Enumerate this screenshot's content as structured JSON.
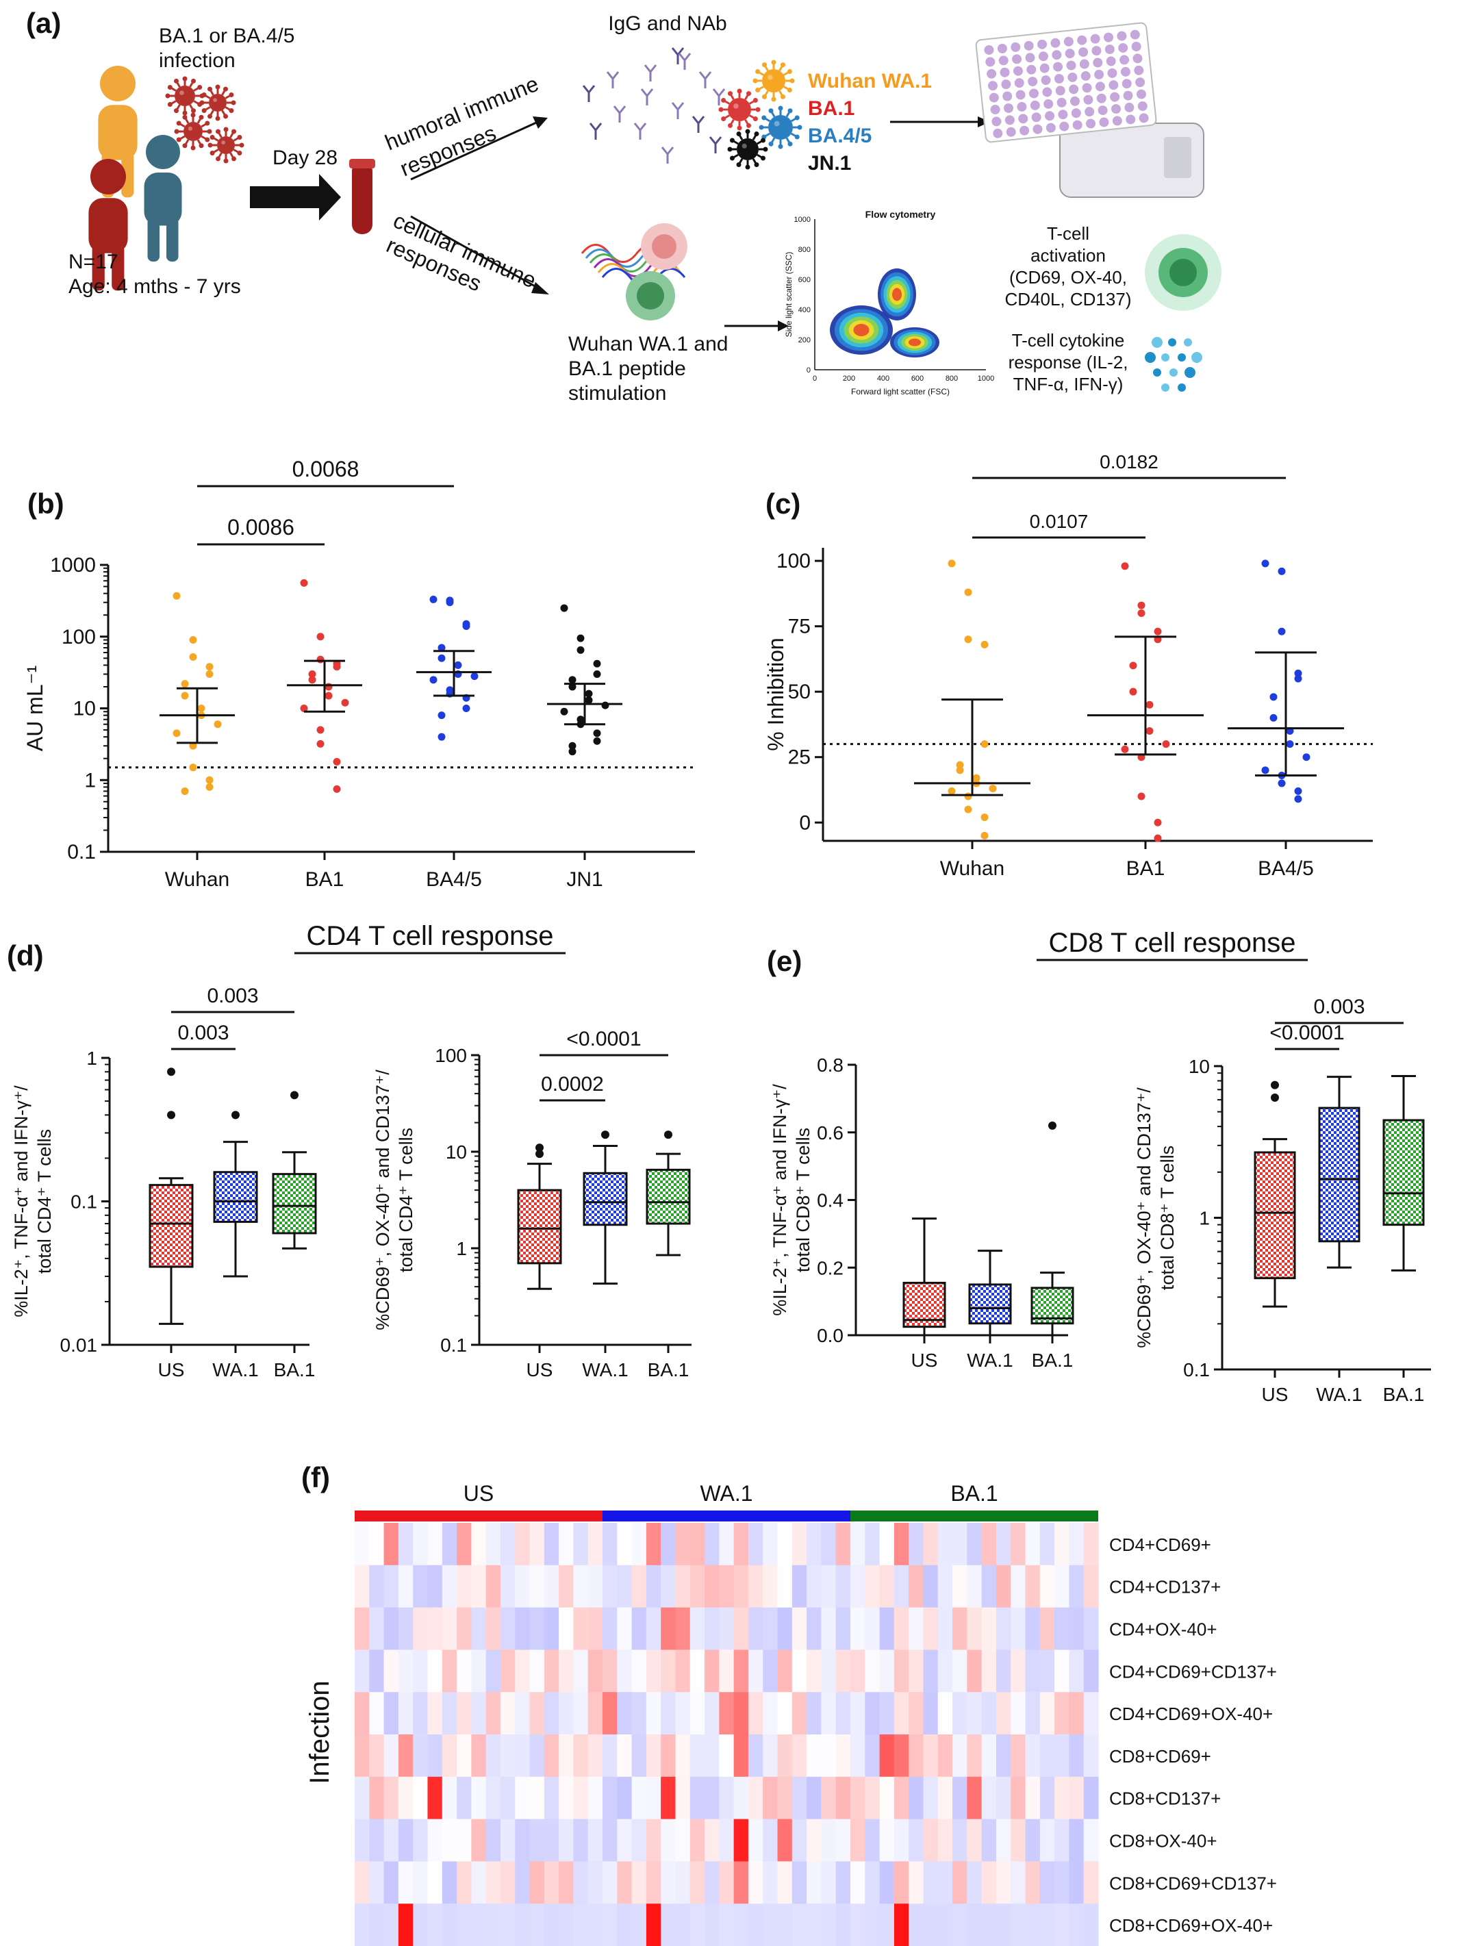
{
  "panel_labels": [
    "(a)",
    "(b)",
    "(c)",
    "(d)",
    "(e)",
    "(f)"
  ],
  "schematic": {
    "infection_label_1": "BA.1 or BA.4/5",
    "infection_label_2": "infection",
    "day_label": "Day 28",
    "n_label": "N=17",
    "age_label": "Age: 4 mths - 7 yrs",
    "humoral_1": "humoral immune",
    "humoral_2": "responses",
    "cellular_1": "cellular immune",
    "cellular_2": "responses",
    "igg_label": "IgG and NAb",
    "variants": [
      {
        "label": "Wuhan WA.1",
        "color": "#f39c1f"
      },
      {
        "label": "BA.1",
        "color": "#e02020"
      },
      {
        "label": "BA.4/5",
        "color": "#2a7fc0"
      },
      {
        "label": "JN.1",
        "color": "#111111"
      }
    ],
    "stim_1": "Wuhan WA.1 and",
    "stim_2": "BA.1 peptide",
    "stim_3": "stimulation",
    "flow_title": "Flow cytometry",
    "flow_xlabel": "Forward light scatter (FSC)",
    "flow_ylabel": "Side light scatter (SSC)",
    "flow_xticks": [
      "0",
      "200",
      "400",
      "600",
      "800",
      "1000"
    ],
    "flow_yticks": [
      "0",
      "200",
      "400",
      "600",
      "800",
      "1000"
    ],
    "activation_1": "T-cell",
    "activation_2": "activation",
    "activation_3": "(CD69, OX-40,",
    "activation_4": "CD40L, CD137)",
    "cytokine_1": "T-cell cytokine",
    "cytokine_2": "response (IL-2,",
    "cytokine_3": "TNF-α, IFN-γ)"
  },
  "headings": {
    "cd4": "CD4 T cell response",
    "cd8": "CD8 T cell response"
  },
  "chart_data": [
    {
      "id": "b",
      "type": "scatter",
      "yscale": "log",
      "ylim": [
        0.1,
        1000
      ],
      "yticks": [
        "0.1",
        "1",
        "10",
        "100",
        "1000"
      ],
      "ylabel": "AU mL⁻¹",
      "categories": [
        "Wuhan",
        "BA1",
        "BA4/5",
        "JN1"
      ],
      "threshold": 1.5,
      "series": [
        {
          "name": "Wuhan",
          "color": "#f5a623",
          "median": 8,
          "q1": 3.3,
          "q3": 19,
          "values": [
            370,
            90,
            52,
            38,
            30,
            22,
            15,
            10,
            8,
            6,
            4.5,
            3,
            1.5,
            1,
            0.8,
            0.7
          ]
        },
        {
          "name": "BA1",
          "color": "#e53935",
          "median": 21,
          "q1": 9,
          "q3": 46,
          "values": [
            560,
            100,
            48,
            42,
            38,
            30,
            25,
            20,
            15,
            12,
            10,
            5,
            3.2,
            1.8,
            0.75
          ]
        },
        {
          "name": "BA4/5",
          "color": "#1e3ddc",
          "median": 32,
          "q1": 15,
          "q3": 63,
          "values": [
            330,
            320,
            300,
            150,
            140,
            70,
            50,
            40,
            30,
            28,
            25,
            18,
            16,
            14,
            10,
            8,
            4
          ]
        },
        {
          "name": "JN1",
          "color": "#111111",
          "median": 11.5,
          "q1": 6,
          "q3": 22,
          "values": [
            250,
            95,
            65,
            42,
            30,
            25,
            20,
            16,
            13,
            11,
            9,
            7,
            6,
            4.5,
            3.5,
            3,
            2.5
          ]
        }
      ],
      "comparisons": [
        {
          "from": "Wuhan",
          "to": "BA1",
          "label": "0.0086"
        },
        {
          "from": "Wuhan",
          "to": "BA4/5",
          "label": "0.0068"
        }
      ]
    },
    {
      "id": "c",
      "type": "scatter",
      "ylim": [
        -7,
        105
      ],
      "yticks": [
        "0",
        "25",
        "50",
        "75",
        "100"
      ],
      "ylabel": "% Inhibition",
      "categories": [
        "Wuhan",
        "BA1",
        "BA4/5"
      ],
      "threshold": 30,
      "series": [
        {
          "name": "Wuhan",
          "color": "#f5a623",
          "median": 15,
          "q1": 10.5,
          "q3": 47,
          "values": [
            99,
            88,
            70,
            68,
            30,
            22,
            20,
            17,
            15,
            13,
            12,
            10,
            5,
            2,
            -5
          ]
        },
        {
          "name": "BA1",
          "color": "#e53935",
          "median": 41,
          "q1": 26,
          "q3": 71,
          "values": [
            98,
            83,
            80,
            73,
            70,
            60,
            50,
            45,
            35,
            30,
            28,
            25,
            10,
            0,
            -6
          ]
        },
        {
          "name": "BA4/5",
          "color": "#1e3ddc",
          "median": 36,
          "q1": 18,
          "q3": 65,
          "values": [
            99,
            96,
            73,
            57,
            55,
            48,
            40,
            35,
            30,
            25,
            20,
            18,
            15,
            12,
            9
          ]
        }
      ],
      "comparisons": [
        {
          "from": "Wuhan",
          "to": "BA1",
          "label": "0.0107"
        },
        {
          "from": "Wuhan",
          "to": "BA4/5",
          "label": "0.0182"
        }
      ]
    },
    {
      "id": "d-left",
      "type": "box",
      "yscale": "log",
      "ylim": [
        0.01,
        1
      ],
      "yticks": [
        "0.01",
        "0.1",
        "1"
      ],
      "ylabel_1": "%IL-2⁺, TNF-α⁺ and IFN-γ⁺/",
      "ylabel_2": "total CD4⁺ T cells",
      "categories": [
        "US",
        "WA.1",
        "BA.1"
      ],
      "boxes": [
        {
          "name": "US",
          "min": 0.014,
          "q1": 0.035,
          "median": 0.07,
          "q3": 0.13,
          "max": 0.145,
          "outliers": [
            0.8,
            0.4
          ],
          "color": "#e53935"
        },
        {
          "name": "WA.1",
          "min": 0.03,
          "q1": 0.072,
          "median": 0.1,
          "q3": 0.16,
          "max": 0.26,
          "outliers": [
            0.4
          ],
          "color": "#1e3ddc"
        },
        {
          "name": "BA.1",
          "min": 0.047,
          "q1": 0.06,
          "median": 0.093,
          "q3": 0.155,
          "max": 0.22,
          "outliers": [
            0.55
          ],
          "color": "#2ca02c"
        }
      ],
      "comparisons": [
        {
          "from": "US",
          "to": "WA.1",
          "label": "0.003"
        },
        {
          "from": "US",
          "to": "BA.1",
          "label": "0.003"
        }
      ]
    },
    {
      "id": "d-right",
      "type": "box",
      "yscale": "log",
      "ylim": [
        0.1,
        100
      ],
      "yticks": [
        "0.1",
        "1",
        "10",
        "100"
      ],
      "ylabel_1": "%CD69⁺, OX-40⁺ and CD137⁺/",
      "ylabel_2": "total  CD4⁺ T cells",
      "categories": [
        "US",
        "WA.1",
        "BA.1"
      ],
      "boxes": [
        {
          "name": "US",
          "min": 0.38,
          "q1": 0.7,
          "median": 1.6,
          "q3": 4,
          "max": 7.5,
          "outliers": [
            11,
            9.5
          ],
          "color": "#e53935"
        },
        {
          "name": "WA.1",
          "min": 0.43,
          "q1": 1.75,
          "median": 3,
          "q3": 6,
          "max": 11.5,
          "outliers": [
            15
          ],
          "color": "#1e3ddc"
        },
        {
          "name": "BA.1",
          "min": 0.85,
          "q1": 1.8,
          "median": 3,
          "q3": 6.5,
          "max": 9.5,
          "outliers": [
            15
          ],
          "color": "#2ca02c"
        }
      ],
      "comparisons": [
        {
          "from": "US",
          "to": "WA.1",
          "label": "0.0002"
        },
        {
          "from": "US",
          "to": "BA.1",
          "label": "<0.0001"
        }
      ]
    },
    {
      "id": "e-left",
      "type": "box",
      "ylim": [
        0,
        0.8
      ],
      "yticks": [
        "0.0",
        "0.2",
        "0.4",
        "0.6",
        "0.8"
      ],
      "ylabel_1": "%IL-2⁺, TNF-α⁺ and IFN-γ⁺/",
      "ylabel_2": "total CD8⁺ T cells",
      "categories": [
        "US",
        "WA.1",
        "BA.1"
      ],
      "boxes": [
        {
          "name": "US",
          "min": 0.0,
          "q1": 0.025,
          "median": 0.045,
          "q3": 0.155,
          "max": 0.345,
          "outliers": [],
          "color": "#e53935"
        },
        {
          "name": "WA.1",
          "min": 0.0,
          "q1": 0.035,
          "median": 0.08,
          "q3": 0.15,
          "max": 0.25,
          "outliers": [],
          "color": "#1e3ddc"
        },
        {
          "name": "BA.1",
          "min": 0.0,
          "q1": 0.035,
          "median": 0.05,
          "q3": 0.14,
          "max": 0.185,
          "outliers": [
            0.62
          ],
          "color": "#2ca02c"
        }
      ],
      "comparisons": []
    },
    {
      "id": "e-right",
      "type": "box",
      "yscale": "log",
      "ylim": [
        0.1,
        10
      ],
      "yticks": [
        "0.1",
        "1",
        "10"
      ],
      "ylabel_1": "%CD69⁺, OX-40⁺ and CD137⁺/",
      "ylabel_2": "total  CD8⁺ T cells",
      "categories": [
        "US",
        "WA.1",
        "BA.1"
      ],
      "boxes": [
        {
          "name": "US",
          "min": 0.26,
          "q1": 0.4,
          "median": 1.08,
          "q3": 2.7,
          "max": 3.3,
          "outliers": [
            7.5,
            6.2
          ],
          "color": "#e53935"
        },
        {
          "name": "WA.1",
          "min": 0.47,
          "q1": 0.7,
          "median": 1.8,
          "q3": 5.3,
          "max": 8.5,
          "outliers": [],
          "color": "#1e3ddc"
        },
        {
          "name": "BA.1",
          "min": 0.45,
          "q1": 0.9,
          "median": 1.45,
          "q3": 4.4,
          "max": 8.6,
          "outliers": [],
          "color": "#2ca02c"
        }
      ],
      "comparisons": [
        {
          "from": "US",
          "to": "WA.1",
          "label": "<0.0001"
        },
        {
          "from": "US",
          "to": "BA.1",
          "label": "0.003"
        }
      ]
    },
    {
      "id": "f",
      "type": "heatmap",
      "side_label": "Infection",
      "groups": [
        {
          "label": "US",
          "color": "#e8151b"
        },
        {
          "label": "WA.1",
          "color": "#1515e8"
        },
        {
          "label": "BA.1",
          "color": "#0a7a1a"
        }
      ],
      "rows": [
        "CD4+CD69+",
        "CD4+CD137+",
        "CD4+OX-40+",
        "CD4+CD69+CD137+",
        "CD4+CD69+OX-40+",
        "CD8+CD69+",
        "CD8+CD137+",
        "CD8+OX-40+",
        "CD8+CD69+CD137+",
        "CD8+CD69+OX-40+"
      ],
      "columns_per_group": 17,
      "value_range": [
        -1,
        1
      ]
    }
  ]
}
